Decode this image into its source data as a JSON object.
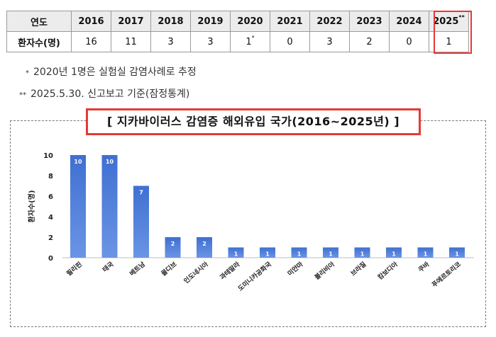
{
  "table": {
    "header_label": "연도",
    "row_label": "환자수(명)",
    "years": [
      "2016",
      "2017",
      "2018",
      "2019",
      "2020",
      "2021",
      "2022",
      "2023",
      "2024",
      "2025"
    ],
    "counts": [
      "16",
      "11",
      "3",
      "3",
      "1",
      "0",
      "3",
      "2",
      "0",
      "1"
    ],
    "mark_2020": "*",
    "mark_2025": "**"
  },
  "notes": [
    {
      "mark": "*",
      "text": "2020년 1명은 실험실 감염사례로 추정"
    },
    {
      "mark": "**",
      "text": "2025.5.30. 신고보고 기준(잠정통계)"
    }
  ],
  "colors": {
    "bar": "#3f6fd1",
    "bar_light": "#6a95e6",
    "highlight": "#e53935"
  },
  "chart_data": {
    "type": "bar",
    "title": "[ 지카바이러스 감염증 해외유입 국가(2016~2025년) ]",
    "ylabel": "환자수(명)",
    "xlabel": "",
    "ylim": [
      0,
      10
    ],
    "yticks": [
      0,
      2,
      4,
      6,
      8,
      10
    ],
    "categories": [
      "필리핀",
      "태국",
      "베트남",
      "몰디브",
      "인도네시아",
      "과테말라",
      "도미니카공화국",
      "미얀마",
      "볼리비아",
      "브라질",
      "캄보디아",
      "쿠바",
      "푸에르토리코"
    ],
    "values": [
      10,
      10,
      7,
      2,
      2,
      1,
      1,
      1,
      1,
      1,
      1,
      1,
      1
    ],
    "data_labels": true,
    "grid": false,
    "legend": "none"
  }
}
